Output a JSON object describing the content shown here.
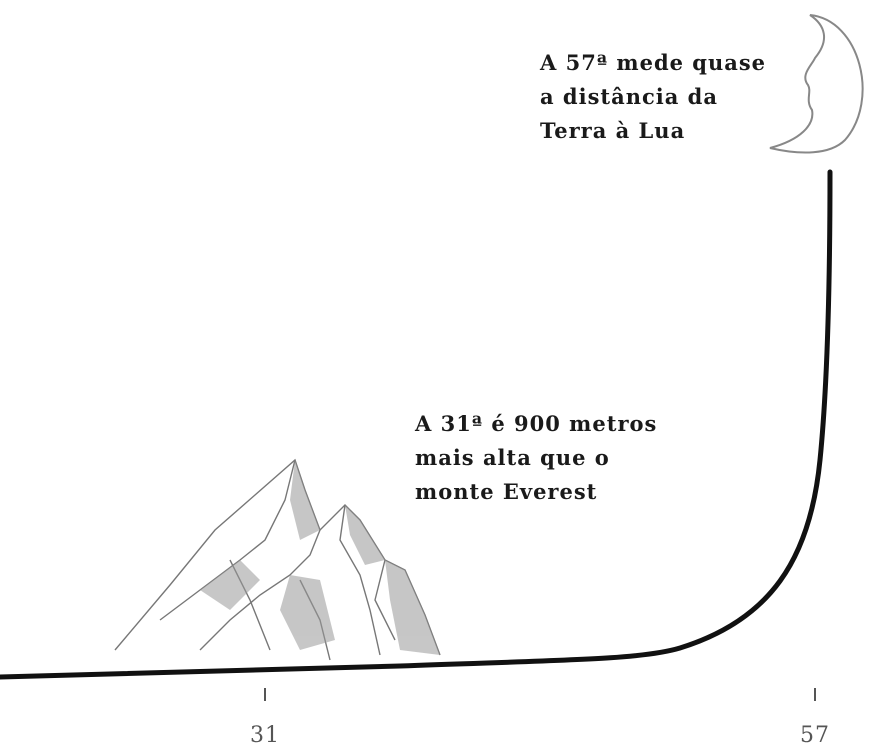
{
  "annotations": [
    {
      "lines": [
        "A 57ª mede quase",
        "a distância da",
        "Terra à Lua"
      ]
    },
    {
      "lines": [
        "A 31ª é 900 metros",
        "mais alta que o",
        "monte Everest"
      ]
    }
  ],
  "axis": {
    "ticks": [
      "31",
      "57"
    ]
  }
}
